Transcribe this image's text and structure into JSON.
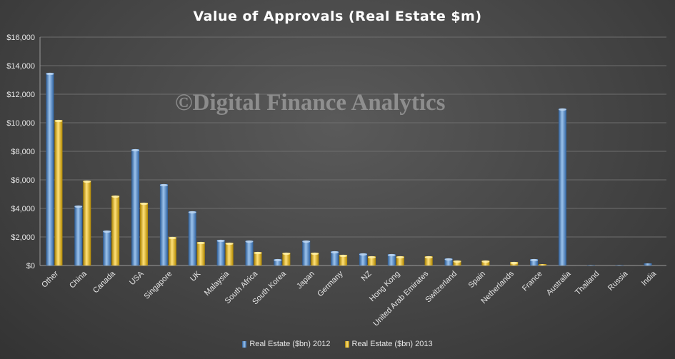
{
  "chart_data": {
    "type": "bar",
    "title": "Value of Approvals  (Real Estate $m)",
    "watermark": "©Digital Finance Analytics",
    "categories": [
      "Other",
      "China",
      "Canada",
      "USA",
      "Singapore",
      "UK",
      "Malaysia",
      "South Africa",
      "South Korea",
      "Japan",
      "Germany",
      "NZ",
      "Hong Kong",
      "United Arab Emirates",
      "Switzerland",
      "Spain",
      "Netherlands",
      "France",
      "Australia",
      "Thailand",
      "Russia",
      "India"
    ],
    "series": [
      {
        "name": "Real Estate ($bn) 2012",
        "color": "#4f81bd",
        "values": [
          13500,
          4200,
          2450,
          8150,
          5700,
          3800,
          1800,
          1750,
          450,
          1750,
          1000,
          850,
          800,
          0,
          500,
          0,
          0,
          450,
          11000,
          30,
          30,
          150
        ]
      },
      {
        "name": "Real Estate ($bn) 2013",
        "color": "#e8b400",
        "values": [
          10200,
          5950,
          4900,
          4400,
          2000,
          1650,
          1600,
          950,
          900,
          900,
          750,
          650,
          650,
          650,
          350,
          350,
          250,
          100,
          0,
          0,
          0,
          0
        ]
      }
    ],
    "ylim": [
      0,
      16000
    ],
    "yticks": [
      0,
      2000,
      4000,
      6000,
      8000,
      10000,
      12000,
      14000,
      16000
    ],
    "ytick_labels": [
      "$0",
      "$2,000",
      "$4,000",
      "$6,000",
      "$8,000",
      "$10,000",
      "$12,000",
      "$14,000",
      "$16,000"
    ],
    "grid": true,
    "legend_position": "bottom"
  }
}
